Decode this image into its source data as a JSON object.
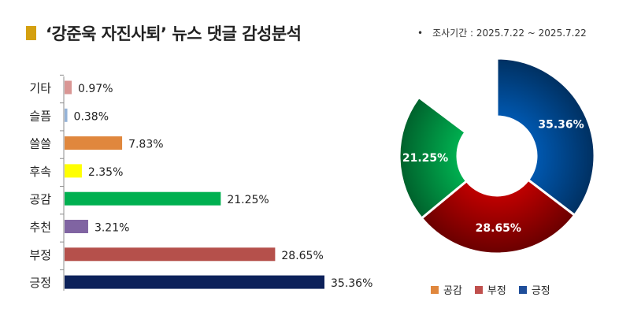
{
  "header": {
    "title": "‘강준욱 자진사퇴’ 뉴스 댓글 감성분석",
    "period_bullet": "•",
    "period": "조사기간 : 2025.7.22 ~ 2025.7.22"
  },
  "colors": {
    "title_marker": "#d4a010"
  },
  "chart_data": [
    {
      "type": "bar",
      "orientation": "horizontal",
      "title": "",
      "xlabel": "",
      "ylabel": "",
      "xlim": [
        0,
        35.36
      ],
      "grid": false,
      "categories": [
        "기타",
        "슬픔",
        "쓸쓸",
        "후속",
        "공감",
        "추천",
        "부정",
        "긍정"
      ],
      "values": [
        0.97,
        0.38,
        7.83,
        2.35,
        21.25,
        3.21,
        28.65,
        35.36
      ],
      "value_labels": [
        "0.97%",
        "0.38%",
        "7.83%",
        "2.35%",
        "21.25%",
        "3.21%",
        "28.65%",
        "35.36%"
      ],
      "colors": [
        "#d99694",
        "#95b3d7",
        "#e0873d",
        "#ffff00",
        "#00b050",
        "#8064a2",
        "#b5504b",
        "#0c215a"
      ]
    },
    {
      "type": "pie",
      "subtype": "donut",
      "title": "",
      "labels": [
        "긍정",
        "부정",
        "공감"
      ],
      "values": [
        35.36,
        28.65,
        21.25
      ],
      "value_labels": [
        "35.36%",
        "28.65%",
        "21.25%"
      ],
      "colors": [
        "#0058b0",
        "#c00000",
        "#00b050"
      ],
      "legend_position": "bottom",
      "legend": [
        {
          "label": "공감",
          "color": "#e0873d"
        },
        {
          "label": "부정",
          "color": "#c0504d"
        },
        {
          "label": "긍정",
          "color": "#1f4e9a"
        }
      ]
    }
  ]
}
